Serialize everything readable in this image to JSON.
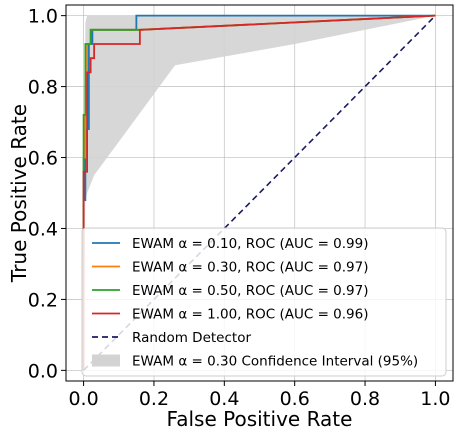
{
  "chart_data": {
    "type": "line",
    "xlabel": "False Positive Rate",
    "ylabel": "True Positive Rate",
    "xlim": [
      -0.05,
      1.05
    ],
    "ylim": [
      -0.03,
      1.03
    ],
    "xticks": [
      0.0,
      0.2,
      0.4,
      0.6,
      0.8,
      1.0
    ],
    "yticks": [
      0.0,
      0.2,
      0.4,
      0.6,
      0.8,
      1.0
    ],
    "xtick_labels": [
      "0.0",
      "0.2",
      "0.4",
      "0.6",
      "0.8",
      "1.0"
    ],
    "ytick_labels": [
      "0.0",
      "0.2",
      "0.4",
      "0.6",
      "0.8",
      "1.0"
    ],
    "grid": true,
    "legend_position": "lower-right",
    "series": [
      {
        "name": "EWAM α = 0.10, ROC (AUC = 0.99)",
        "color": "#1f77b4",
        "x": [
          0,
          0,
          0.005,
          0.005,
          0.015,
          0.015,
          0.025,
          0.025,
          0.15,
          0.15,
          1.0
        ],
        "y": [
          0,
          0.48,
          0.48,
          0.68,
          0.68,
          0.92,
          0.92,
          0.96,
          0.96,
          1.0,
          1.0
        ]
      },
      {
        "name": "EWAM α = 0.30, ROC (AUC = 0.97)",
        "color": "#ff7f0e",
        "x": [
          0,
          0,
          0.005,
          0.005,
          0.01,
          0.01,
          0.02,
          0.02,
          0.16,
          0.16,
          1.0
        ],
        "y": [
          0,
          0.6,
          0.6,
          0.8,
          0.8,
          0.92,
          0.92,
          0.96,
          0.96,
          0.96,
          1.0
        ]
      },
      {
        "name": "EWAM α = 0.50, ROC (AUC = 0.97)",
        "color": "#2ca02c",
        "x": [
          0,
          0,
          0.005,
          0.005,
          0.02,
          0.02,
          0.16,
          0.16,
          1.0
        ],
        "y": [
          0,
          0.72,
          0.72,
          0.92,
          0.92,
          0.96,
          0.96,
          0.96,
          1.0
        ]
      },
      {
        "name": "EWAM α = 1.00, ROC (AUC = 0.96)",
        "color": "#d62728",
        "x": [
          0,
          0,
          0.01,
          0.01,
          0.02,
          0.02,
          0.03,
          0.03,
          0.16,
          0.16,
          1.0
        ],
        "y": [
          0,
          0.56,
          0.56,
          0.84,
          0.84,
          0.88,
          0.88,
          0.92,
          0.92,
          0.96,
          1.0
        ]
      }
    ],
    "random_detector": {
      "name": "Random Detector",
      "color": "#1a1a66",
      "x": [
        0,
        1
      ],
      "y": [
        0,
        1
      ]
    },
    "confidence_band": {
      "name": "EWAM α = 0.30 Confidence Interval (95%)",
      "color": "#d3d3d3",
      "upper": {
        "x": [
          0,
          0.005,
          0.01,
          1.0
        ],
        "y": [
          0.0,
          0.98,
          1.0,
          1.0
        ]
      },
      "lower": {
        "x": [
          0,
          0.005,
          0.01,
          0.03,
          0.26,
          0.6,
          1.0
        ],
        "y": [
          0.0,
          0.48,
          0.5,
          0.55,
          0.86,
          0.92,
          1.0
        ]
      }
    }
  }
}
